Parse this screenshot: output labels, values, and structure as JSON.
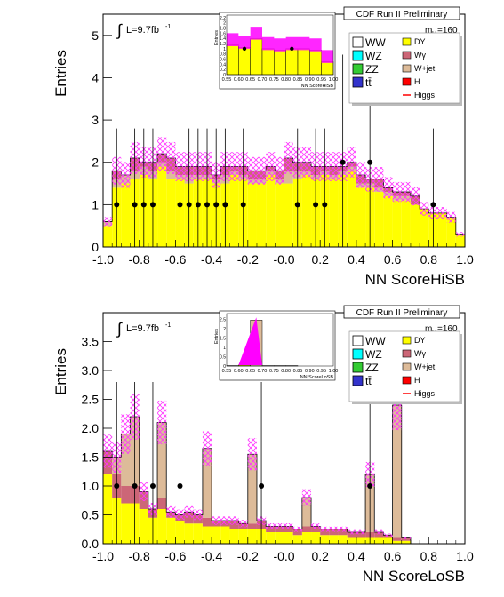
{
  "panels": [
    {
      "id": "hisb",
      "header": "CDF Run II Preliminary",
      "ylabel": "Entries",
      "xlabel": "NN ScoreHiSB",
      "lumi": "L=9.7fb",
      "lumi_sup": "-1",
      "mass_label_m": "m",
      "mass_label_sub": "H",
      "mass_label_val": "=160",
      "xticks": [
        "-1.0",
        "-0.8",
        "-0.6",
        "-0.4",
        "-0.2",
        "-0.0",
        "0.2",
        "0.4",
        "0.6",
        "0.8",
        "1.0"
      ],
      "yticks": [
        "0",
        "1",
        "2",
        "3",
        "4",
        "5"
      ],
      "legend": [
        {
          "label": "WW",
          "color": "#ffffff"
        },
        {
          "label": "DY",
          "color": "#ffff00"
        },
        {
          "label": "WZ",
          "color": "#00ffff"
        },
        {
          "label": "Wγ",
          "color": "#cc6677"
        },
        {
          "label": "ZZ",
          "color": "#33cc33"
        },
        {
          "label": "W+jet",
          "color": "#ddbb99"
        },
        {
          "label": "tt̄",
          "color": "#3333cc"
        },
        {
          "label": "H",
          "color": "#ff0000"
        },
        {
          "label": "",
          "color": ""
        },
        {
          "label": "Higgs",
          "color": "#ff0000"
        }
      ],
      "inset": {
        "ylabel": "Entries",
        "xlabel": "NN ScoreHiSB",
        "xticks": [
          "0.55",
          "0.60",
          "0.65",
          "0.70",
          "0.75",
          "0.80",
          "0.85",
          "0.90",
          "0.95",
          "1.00"
        ],
        "yticks": [
          "0",
          "0.2",
          "0.4",
          "0.6",
          "0.8",
          "1",
          "1.2",
          "1.4",
          "1.6",
          "1.8",
          "2",
          "2.2"
        ]
      }
    },
    {
      "id": "losb",
      "header": "CDF Run II Preliminary",
      "ylabel": "Entries",
      "xlabel": "NN ScoreLoSB",
      "lumi": "L=9.7fb",
      "lumi_sup": "-1",
      "mass_label_m": "m",
      "mass_label_sub": "H",
      "mass_label_val": "=160",
      "xticks": [
        "-1.0",
        "-0.8",
        "-0.6",
        "-0.4",
        "-0.2",
        "-0.0",
        "0.2",
        "0.4",
        "0.6",
        "0.8",
        "1.0"
      ],
      "yticks": [
        "0.0",
        "0.5",
        "1.0",
        "1.5",
        "2.0",
        "2.5",
        "3.0",
        "3.5"
      ],
      "legend": [
        {
          "label": "WW",
          "color": "#ffffff"
        },
        {
          "label": "DY",
          "color": "#ffff00"
        },
        {
          "label": "WZ",
          "color": "#00ffff"
        },
        {
          "label": "Wγ",
          "color": "#cc6677"
        },
        {
          "label": "ZZ",
          "color": "#33cc33"
        },
        {
          "label": "W+jet",
          "color": "#ddbb99"
        },
        {
          "label": "tt̄",
          "color": "#3333cc"
        },
        {
          "label": "H",
          "color": "#ff0000"
        },
        {
          "label": "",
          "color": ""
        },
        {
          "label": "Higgs",
          "color": "#ff0000"
        }
      ],
      "inset": {
        "ylabel": "Entries",
        "xlabel": "NN ScoreLoSB",
        "xticks": [
          "0.55",
          "0.60",
          "0.65",
          "0.70",
          "0.75",
          "0.80",
          "0.85",
          "0.90",
          "0.95",
          "1.00"
        ],
        "yticks": [
          "0",
          "0.5",
          "1",
          "1.5",
          "2",
          "2.5"
        ]
      }
    }
  ],
  "chart_data": [
    {
      "type": "bar",
      "xlabel": "NN ScoreHiSB",
      "ylabel": "Entries",
      "xlim": [
        -1.0,
        1.0
      ],
      "ylim": [
        0,
        5.5
      ],
      "bin_width": 0.05,
      "x_bins_low": [
        -1.0,
        -0.95,
        -0.9,
        -0.85,
        -0.8,
        -0.75,
        -0.7,
        -0.65,
        -0.6,
        -0.55,
        -0.5,
        -0.45,
        -0.4,
        -0.35,
        -0.3,
        -0.25,
        -0.2,
        -0.15,
        -0.1,
        -0.05,
        0.0,
        0.05,
        0.1,
        0.15,
        0.2,
        0.25,
        0.3,
        0.35,
        0.4,
        0.45,
        0.5,
        0.55,
        0.6,
        0.65,
        0.7,
        0.75,
        0.8,
        0.85,
        0.9,
        0.95
      ],
      "series": [
        {
          "name": "DY",
          "values": [
            0.5,
            1.4,
            1.5,
            1.6,
            1.7,
            1.6,
            1.9,
            1.6,
            1.6,
            1.5,
            1.6,
            1.6,
            1.5,
            1.5,
            1.7,
            1.6,
            1.5,
            1.5,
            1.7,
            1.5,
            1.5,
            1.6,
            1.7,
            1.6,
            1.7,
            1.6,
            1.7,
            1.8,
            1.4,
            1.4,
            1.3,
            1.2,
            1.1,
            1.1,
            1.0,
            0.9,
            0.8,
            0.8,
            0.7,
            0.3
          ]
        },
        {
          "name": "W+jet",
          "values": [
            0.1,
            0.2,
            0.2,
            0.2,
            0.2,
            0.2,
            0.1,
            0.2,
            0.1,
            0.2,
            0.1,
            0.1,
            0.1,
            0.2,
            0.1,
            0.1,
            0.1,
            0.1,
            0.1,
            0.1,
            0.3,
            0.2,
            0.1,
            0.1,
            0.1,
            0.1,
            0.1,
            0.1,
            0.1,
            0.1,
            0.1,
            0.1,
            0.1,
            0.1,
            0.0,
            0.0,
            0.0,
            0.0,
            0.0,
            0.0
          ]
        },
        {
          "name": "Wγ",
          "values": [
            0.0,
            0.2,
            0.0,
            0.3,
            0.1,
            0.2,
            0.2,
            0.3,
            0.2,
            0.2,
            0.2,
            0.2,
            0.1,
            0.2,
            0.1,
            0.2,
            0.2,
            0.2,
            0.1,
            0.2,
            0.3,
            0.2,
            0.2,
            0.2,
            0.1,
            0.2,
            0.1,
            0.1,
            0.2,
            0.1,
            0.2,
            0.1,
            0.1,
            0.1,
            0.2,
            0.0,
            0.0,
            0.0,
            0.0,
            0.0
          ]
        }
      ],
      "data_points": {
        "x": [
          -0.925,
          -0.825,
          -0.775,
          -0.725,
          -0.575,
          -0.525,
          -0.475,
          -0.425,
          -0.375,
          -0.325,
          -0.225,
          0.075,
          0.175,
          0.225,
          0.325,
          0.475,
          0.825
        ],
        "y": [
          1,
          1,
          1,
          1,
          1,
          1,
          1,
          1,
          1,
          1,
          1,
          1,
          1,
          1,
          2,
          2,
          1
        ]
      },
      "inset": {
        "xlim": [
          0.55,
          1.0
        ],
        "ylim": [
          0,
          2.3
        ],
        "bins_low": [
          0.55,
          0.6,
          0.65,
          0.7,
          0.75,
          0.8,
          0.85,
          0.9,
          0.95
        ],
        "bkg": [
          1.15,
          1.05,
          1.4,
          1.0,
          0.95,
          1.0,
          1.0,
          0.95,
          0.5
        ],
        "data_points": {
          "x": [
            0.625,
            0.825
          ],
          "y": [
            1,
            1
          ]
        }
      }
    },
    {
      "type": "bar",
      "xlabel": "NN ScoreLoSB",
      "ylabel": "Entries",
      "xlim": [
        -1.0,
        1.0
      ],
      "ylim": [
        0,
        4.0
      ],
      "bin_width": 0.05,
      "x_bins_low": [
        -1.0,
        -0.95,
        -0.9,
        -0.85,
        -0.8,
        -0.75,
        -0.7,
        -0.65,
        -0.6,
        -0.55,
        -0.5,
        -0.45,
        -0.4,
        -0.35,
        -0.3,
        -0.25,
        -0.2,
        -0.15,
        -0.1,
        -0.05,
        0.0,
        0.05,
        0.1,
        0.15,
        0.2,
        0.25,
        0.3,
        0.35,
        0.4,
        0.45,
        0.5,
        0.55,
        0.6,
        0.65,
        0.7,
        0.75,
        0.8,
        0.85,
        0.9,
        0.95
      ],
      "series": [
        {
          "name": "DY",
          "values": [
            1.2,
            0.8,
            0.7,
            0.7,
            0.6,
            0.45,
            0.6,
            0.45,
            0.4,
            0.35,
            0.35,
            0.3,
            0.3,
            0.3,
            0.25,
            0.25,
            0.25,
            0.25,
            0.2,
            0.2,
            0.2,
            0.15,
            0.2,
            0.2,
            0.15,
            0.15,
            0.15,
            0.1,
            0.1,
            0.1,
            0.1,
            0.1,
            0.05,
            0.05,
            0.0,
            0.0,
            0.0,
            0.0,
            0.0,
            0.0
          ]
        },
        {
          "name": "Wγ",
          "values": [
            0.4,
            0.4,
            0.3,
            0.3,
            0.3,
            0.15,
            0.2,
            0.1,
            0.1,
            0.2,
            0.15,
            0.15,
            0.1,
            0.1,
            0.15,
            0.1,
            0.1,
            0.15,
            0.1,
            0.1,
            0.1,
            0.1,
            0.1,
            0.1,
            0.1,
            0.1,
            0.1,
            0.1,
            0.1,
            0.1,
            0.1,
            0.05,
            0.05,
            0.05,
            0.0,
            0.0,
            0.0,
            0.0,
            0.0,
            0.0
          ]
        },
        {
          "name": "W+jet",
          "values": [
            0.0,
            0.3,
            0.9,
            1.2,
            0.0,
            0.0,
            1.3,
            0.0,
            0.0,
            0.0,
            0.0,
            1.2,
            0.0,
            0.0,
            0.0,
            0.0,
            1.2,
            0.0,
            0.0,
            0.0,
            0.0,
            0.0,
            0.5,
            0.0,
            0.0,
            0.0,
            0.0,
            0.0,
            0.0,
            1.0,
            0.0,
            0.0,
            2.3,
            0.0,
            0.0,
            0.0,
            0.0,
            0.0,
            0.0,
            0.0
          ]
        }
      ],
      "data_points": {
        "x": [
          -0.925,
          -0.825,
          -0.725,
          -0.575,
          -0.125,
          0.475
        ],
        "y": [
          1,
          1,
          1,
          1,
          1,
          1
        ]
      },
      "inset": {
        "xlim": [
          0.55,
          1.0
        ],
        "ylim": [
          0,
          2.8
        ],
        "bins_low": [
          0.55,
          0.6,
          0.65,
          0.7,
          0.75,
          0.8,
          0.85,
          0.9,
          0.95
        ],
        "bkg": [
          0.02,
          0.05,
          2.45,
          0.02,
          0.02,
          0.02,
          0.0,
          0.0,
          0.0
        ],
        "signal_peak": {
          "x": 0.675,
          "y": 2.6
        }
      }
    }
  ]
}
